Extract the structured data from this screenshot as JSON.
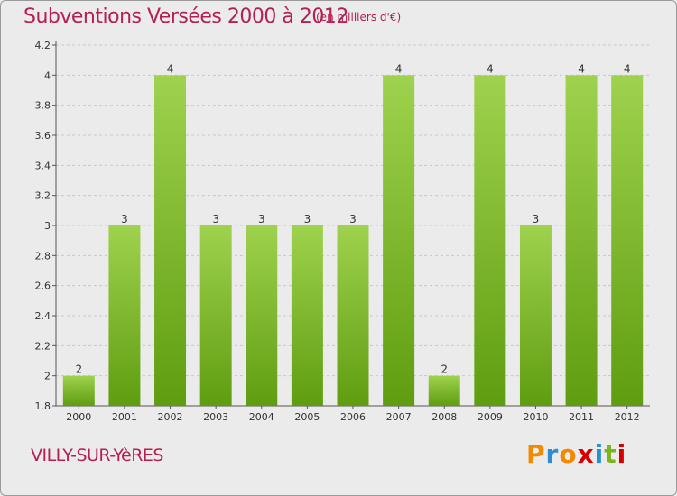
{
  "title": "Subventions Versées 2000 à 2012",
  "subtitle": "(en milliers d'€)",
  "commune": "VILLY-SUR-YèRES",
  "brand": {
    "letters": [
      "P",
      "r",
      "o",
      "x",
      "i",
      "t",
      "i"
    ],
    "colors": [
      "#f18a00",
      "#2c8fd1",
      "#f18a00",
      "#d40000",
      "#2c8fd1",
      "#7ab51d",
      "#d40000"
    ]
  },
  "colors": {
    "title": "#b5204f",
    "bar_top": "#9fd24e",
    "bar_bottom": "#5f9d10",
    "grid": "#c8c8c8",
    "background": "#ebebeb"
  },
  "chart_data": {
    "type": "bar",
    "title": "Subventions Versées 2000 à 2012",
    "xlabel": "",
    "ylabel": "",
    "categories": [
      "2000",
      "2001",
      "2002",
      "2003",
      "2004",
      "2005",
      "2006",
      "2007",
      "2008",
      "2009",
      "2010",
      "2011",
      "2012"
    ],
    "values": [
      2,
      3,
      4,
      3,
      3,
      3,
      3,
      4,
      2,
      4,
      3,
      4,
      4
    ],
    "data_labels": [
      "2",
      "3",
      "4",
      "3",
      "3",
      "3",
      "3",
      "4",
      "2",
      "4",
      "3",
      "4",
      "4"
    ],
    "ylim": [
      1.8,
      4.2
    ],
    "yticks": [
      "1.8",
      "2",
      "2.2",
      "2.4",
      "2.6",
      "2.8",
      "3",
      "3.2",
      "3.4",
      "3.6",
      "3.8",
      "4",
      "4.2"
    ],
    "grid": true,
    "grid_axis": "y",
    "legend": "none"
  }
}
